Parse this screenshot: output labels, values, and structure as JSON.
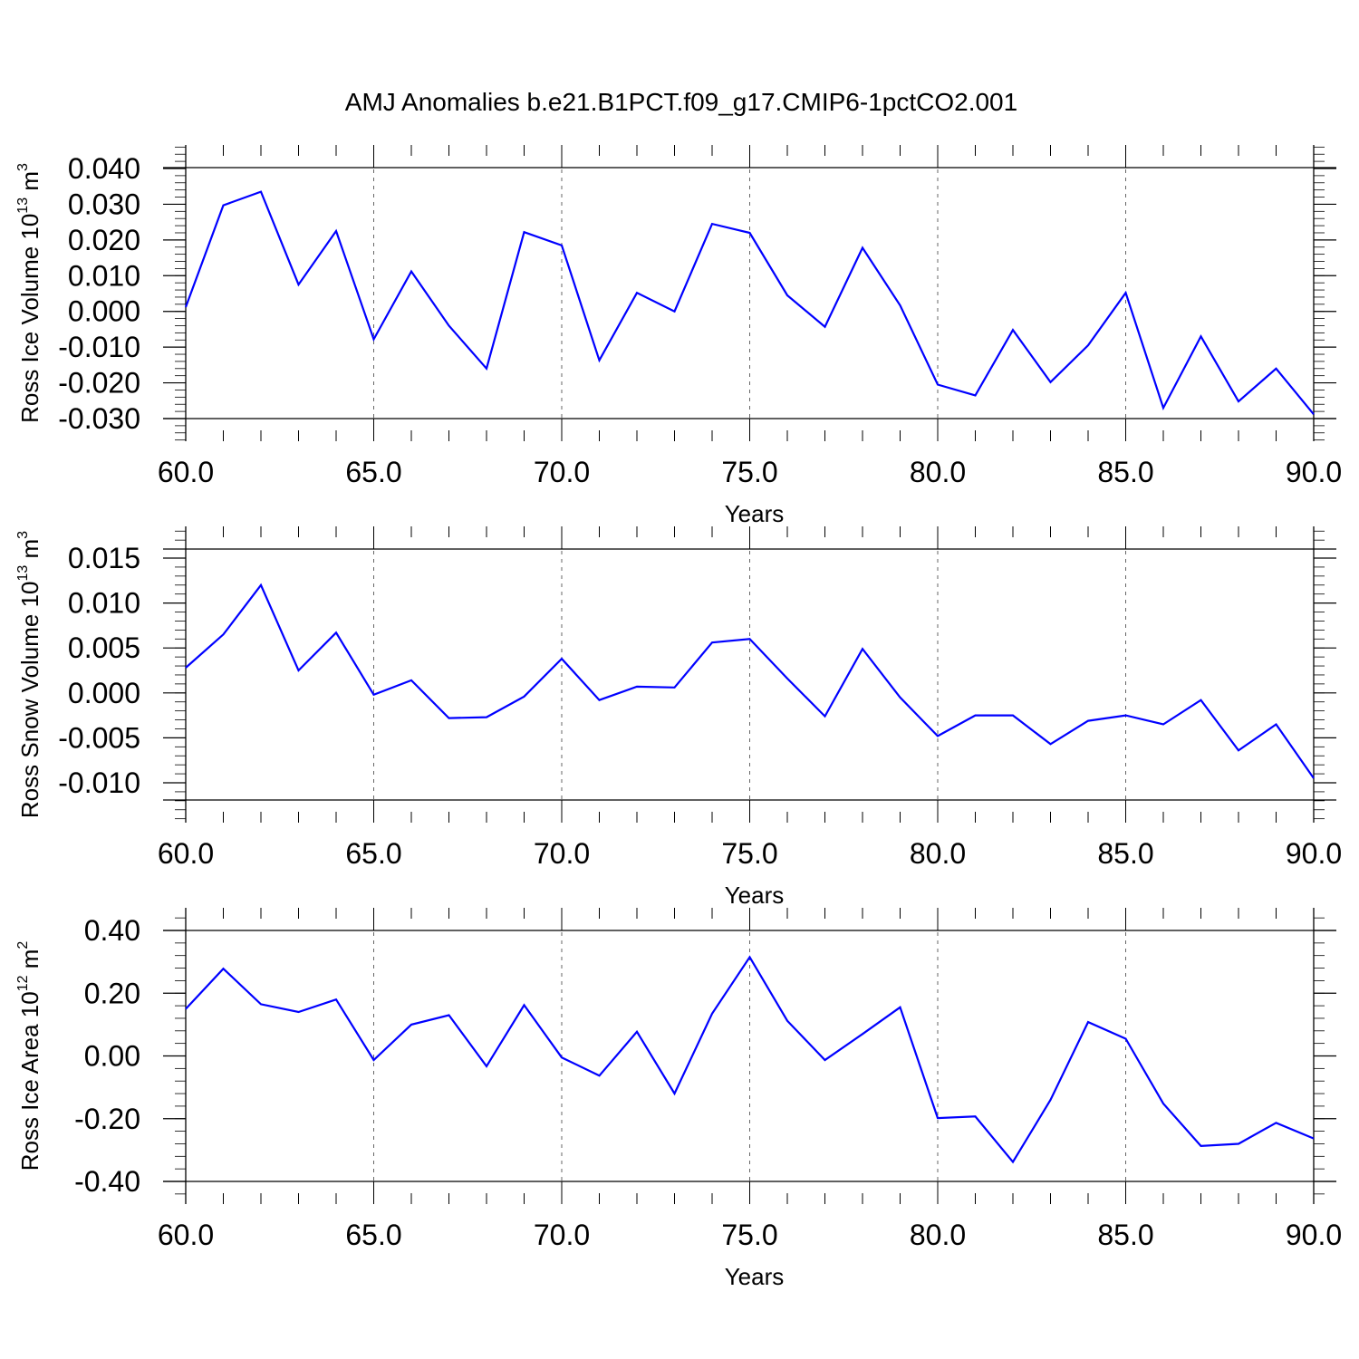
{
  "title": "AMJ Anomalies b.e21.B1PCT.f09_g17.CMIP6-1pctCO2.001",
  "colors": {
    "line": "#0000ff",
    "axis": "#000000",
    "grid": "#666666"
  },
  "chart_data": [
    {
      "type": "line",
      "ylabel": {
        "text": "Ross Ice Volume 10",
        "sup": "13",
        "unit": " m",
        "unit_sup": "3"
      },
      "xlabel": "Years",
      "xlim": [
        60,
        90
      ],
      "ylim": [
        -0.03,
        0.04
      ],
      "xticks": [
        "60.0",
        "65.0",
        "70.0",
        "75.0",
        "80.0",
        "85.0",
        "90.0"
      ],
      "yticks": [
        "0.040",
        "0.030",
        "0.020",
        "0.010",
        "0.000",
        "-0.010",
        "-0.020",
        "-0.030"
      ],
      "ytick_values": [
        0.04,
        0.03,
        0.02,
        0.01,
        0.0,
        -0.01,
        -0.02,
        -0.03
      ],
      "grid": "vertical dashed at major x ticks",
      "series": [
        {
          "x": [
            60,
            61,
            62,
            63,
            64,
            65,
            66,
            67,
            68,
            69,
            70,
            71,
            72,
            73,
            74,
            75,
            76,
            77,
            78,
            79,
            80,
            81,
            82,
            83,
            84,
            85,
            86,
            87,
            88,
            89,
            90
          ],
          "values": [
            0.0012,
            0.0297,
            0.0335,
            0.0075,
            0.0225,
            -0.0078,
            0.0112,
            -0.004,
            -0.016,
            0.0222,
            0.0185,
            -0.0137,
            0.0052,
            0.0,
            0.0245,
            0.022,
            0.0045,
            -0.0043,
            0.0178,
            0.0017,
            -0.0205,
            -0.0235,
            -0.0052,
            -0.0198,
            -0.0095,
            0.0052,
            -0.027,
            -0.007,
            -0.0252,
            -0.016,
            -0.0288
          ]
        }
      ]
    },
    {
      "type": "line",
      "ylabel": {
        "text": "Ross Snow Volume 10",
        "sup": "13",
        "unit": " m",
        "unit_sup": "3"
      },
      "xlabel": "Years",
      "xlim": [
        60,
        90
      ],
      "ylim": [
        -0.012,
        0.016
      ],
      "xticks": [
        "60.0",
        "65.0",
        "70.0",
        "75.0",
        "80.0",
        "85.0",
        "90.0"
      ],
      "yticks": [
        "0.015",
        "0.010",
        "0.005",
        "0.000",
        "-0.005",
        "-0.010"
      ],
      "ytick_values": [
        0.015,
        0.01,
        0.005,
        0.0,
        -0.005,
        -0.01
      ],
      "grid": "vertical dashed at major x ticks",
      "series": [
        {
          "x": [
            60,
            61,
            62,
            63,
            64,
            65,
            66,
            67,
            68,
            69,
            70,
            71,
            72,
            73,
            74,
            75,
            76,
            77,
            78,
            79,
            80,
            81,
            82,
            83,
            84,
            85,
            86,
            87,
            88,
            89,
            90
          ],
          "values": [
            0.0028,
            0.0065,
            0.012,
            0.0025,
            0.0067,
            -0.0002,
            0.0014,
            -0.0028,
            -0.0027,
            -0.0004,
            0.0038,
            -0.0008,
            0.0007,
            0.0006,
            0.0056,
            0.006,
            0.0016,
            -0.0026,
            0.0049,
            -0.0005,
            -0.0048,
            -0.0025,
            -0.0025,
            -0.0057,
            -0.0031,
            -0.0025,
            -0.0035,
            -0.0008,
            -0.0064,
            -0.0035,
            -0.0095
          ]
        }
      ]
    },
    {
      "type": "line",
      "ylabel": {
        "text": "Ross Ice Area 10",
        "sup": "12",
        "unit": " m",
        "unit_sup": "2"
      },
      "xlabel": "Years",
      "xlim": [
        60,
        90
      ],
      "ylim": [
        -0.4,
        0.4
      ],
      "xticks": [
        "60.0",
        "65.0",
        "70.0",
        "75.0",
        "80.0",
        "85.0",
        "90.0"
      ],
      "yticks": [
        "0.40",
        "0.20",
        "0.00",
        "-0.20",
        "-0.40"
      ],
      "ytick_values": [
        0.4,
        0.2,
        0.0,
        -0.2,
        -0.4
      ],
      "grid": "vertical dashed at major x ticks",
      "series": [
        {
          "x": [
            60,
            61,
            62,
            63,
            64,
            65,
            66,
            67,
            68,
            69,
            70,
            71,
            72,
            73,
            74,
            75,
            76,
            77,
            78,
            79,
            80,
            81,
            82,
            83,
            84,
            85,
            86,
            87,
            88,
            89,
            90
          ],
          "values": [
            0.15,
            0.278,
            0.165,
            0.14,
            0.18,
            -0.013,
            0.1,
            0.13,
            -0.033,
            0.162,
            -0.005,
            -0.063,
            0.077,
            -0.12,
            0.135,
            0.315,
            0.112,
            -0.013,
            0.07,
            0.155,
            -0.198,
            -0.193,
            -0.338,
            -0.14,
            0.108,
            0.055,
            -0.152,
            -0.287,
            -0.28,
            -0.213,
            -0.263
          ]
        }
      ]
    }
  ]
}
